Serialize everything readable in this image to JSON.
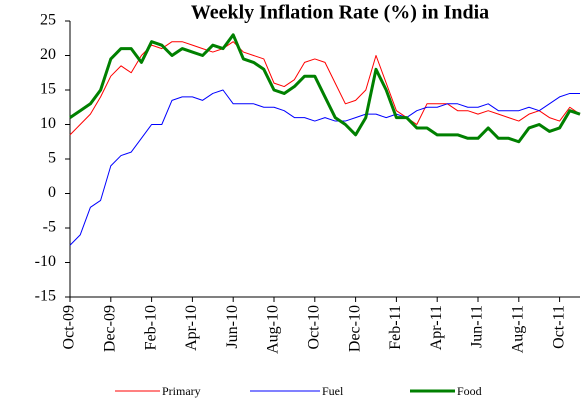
{
  "chart_data": {
    "type": "line",
    "title": "Weekly Inflation Rate (%) in India",
    "categories": [
      "Oct-09",
      null,
      null,
      null,
      "Dec-09",
      null,
      null,
      null,
      "Feb-10",
      null,
      null,
      null,
      "Apr-10",
      null,
      null,
      null,
      "Jun-10",
      null,
      null,
      null,
      "Aug-10",
      null,
      null,
      null,
      "Oct-10",
      null,
      null,
      null,
      "Dec-10",
      null,
      null,
      null,
      "Feb-11",
      null,
      null,
      null,
      "Apr-11",
      null,
      null,
      null,
      "Jun-11",
      null,
      null,
      null,
      "Aug-11",
      null,
      null,
      null,
      "Oct-11",
      null,
      null
    ],
    "series": [
      {
        "name": "Primary",
        "color": "#ff0000",
        "width": 1,
        "values": [
          8.5,
          10,
          11.5,
          14,
          17,
          18.5,
          17.5,
          20,
          21.5,
          21,
          22,
          22,
          21.5,
          21,
          20.5,
          21,
          22,
          20.5,
          20,
          19.5,
          16,
          15.5,
          16.5,
          19,
          19.5,
          19,
          16,
          13,
          13.5,
          15,
          20,
          16,
          12,
          11,
          10,
          13,
          13,
          13,
          12,
          12,
          11.5,
          12,
          11.5,
          11,
          10.5,
          11.5,
          12,
          11,
          10.5,
          12.5,
          11.5
        ]
      },
      {
        "name": "Fuel",
        "color": "#0000ff",
        "width": 1,
        "values": [
          -7.5,
          -6,
          -2,
          -1,
          4,
          5.5,
          6,
          8,
          10,
          10,
          13.5,
          14,
          14,
          13.5,
          14.5,
          15,
          13,
          13,
          13,
          12.5,
          12.5,
          12,
          11,
          11,
          10.5,
          11,
          10.5,
          10.5,
          11,
          11.5,
          11.5,
          11,
          11.5,
          11,
          12,
          12.5,
          12.5,
          13,
          13,
          12.5,
          12.5,
          13,
          12,
          12,
          12,
          12.5,
          12,
          13,
          14,
          14.5,
          14.5
        ]
      },
      {
        "name": "Food",
        "color": "#008000",
        "width": 3,
        "values": [
          11,
          12,
          13,
          15,
          19.5,
          21,
          21,
          19,
          22,
          21.5,
          20,
          21,
          20.5,
          20,
          21.5,
          21,
          23,
          19.5,
          19,
          18,
          15,
          14.5,
          15.5,
          17,
          17,
          14,
          11,
          10,
          8.5,
          11,
          18,
          15,
          11,
          11,
          9.5,
          9.5,
          8.5,
          8.5,
          8.5,
          8,
          8,
          9.5,
          8,
          8,
          7.5,
          9.5,
          10,
          9,
          9.5,
          12,
          11.5
        ]
      }
    ],
    "ylim": [
      -15,
      25
    ],
    "yticks": [
      -15,
      -10,
      -5,
      0,
      5,
      10,
      15,
      20,
      25
    ],
    "grid": false
  }
}
